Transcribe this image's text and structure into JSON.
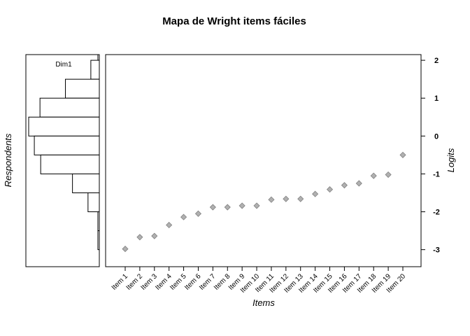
{
  "chart_data": {
    "type": "scatter",
    "title": "Mapa de Wright items fáciles",
    "xlabel": "Items",
    "ylabel_right": "Logits",
    "ylabel_left": "Respondents",
    "histogram_label": "Dim1",
    "ylim": [
      -3.45,
      2.15
    ],
    "yticks": [
      2,
      1,
      0,
      -1,
      -2,
      -3
    ],
    "grid": false,
    "marker_color": "#b0b0b0",
    "marker_edge_color": "#808080",
    "items": [
      {
        "label": "Item 1",
        "value": -2.98
      },
      {
        "label": "Item 2",
        "value": -2.67
      },
      {
        "label": "Item 3",
        "value": -2.64
      },
      {
        "label": "Item 4",
        "value": -2.35
      },
      {
        "label": "Item 5",
        "value": -2.14
      },
      {
        "label": "Item 6",
        "value": -2.05
      },
      {
        "label": "Item 7",
        "value": -1.88
      },
      {
        "label": "Item 8",
        "value": -1.88
      },
      {
        "label": "Item 9",
        "value": -1.84
      },
      {
        "label": "Item 10",
        "value": -1.84
      },
      {
        "label": "Item 11",
        "value": -1.68
      },
      {
        "label": "Item 12",
        "value": -1.66
      },
      {
        "label": "Item 13",
        "value": -1.66
      },
      {
        "label": "Item 14",
        "value": -1.53
      },
      {
        "label": "Item 15",
        "value": -1.41
      },
      {
        "label": "Item 16",
        "value": -1.3
      },
      {
        "label": "Item 17",
        "value": -1.25
      },
      {
        "label": "Item 18",
        "value": -1.05
      },
      {
        "label": "Item 19",
        "value": -1.02
      },
      {
        "label": "Item 20",
        "value": -0.5
      }
    ],
    "histogram": {
      "bins": [
        {
          "from": 2.0,
          "to": 2.15,
          "count": 2
        },
        {
          "from": 1.5,
          "to": 2.0,
          "count": 12
        },
        {
          "from": 1.0,
          "to": 1.5,
          "count": 48
        },
        {
          "from": 0.5,
          "to": 1.0,
          "count": 84
        },
        {
          "from": 0.0,
          "to": 0.5,
          "count": 100
        },
        {
          "from": -0.5,
          "to": 0.0,
          "count": 92
        },
        {
          "from": -1.0,
          "to": -0.5,
          "count": 83
        },
        {
          "from": -1.5,
          "to": -1.0,
          "count": 38
        },
        {
          "from": -2.0,
          "to": -1.5,
          "count": 16
        },
        {
          "from": -2.5,
          "to": -2.0,
          "count": 2
        },
        {
          "from": -3.0,
          "to": -2.5,
          "count": 2
        }
      ],
      "max_count": 100
    }
  }
}
